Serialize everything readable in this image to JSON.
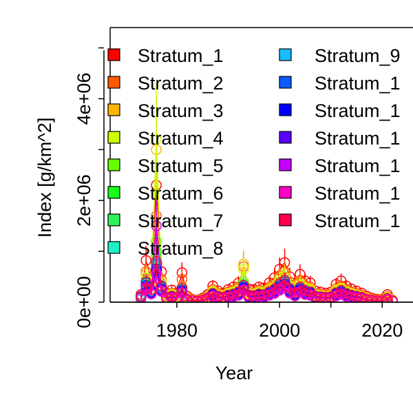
{
  "chart_data": {
    "type": "scatter",
    "title": "",
    "xlabel": "Year",
    "ylabel": "Index [g/km^2]",
    "xlim": [
      1967,
      2026
    ],
    "ylim": [
      0,
      5400000
    ],
    "x_ticks": [
      1980,
      2000,
      2020
    ],
    "x_tick_labels": [
      "1980",
      "2000",
      "2020"
    ],
    "y_ticks": [
      0,
      2000000,
      4000000
    ],
    "y_tick_labels": [
      "0e+00",
      "2e+06",
      "4e+06"
    ],
    "grid": false,
    "legend_position": "top-left, two columns, clipped at the right edge",
    "legend_entries": [
      {
        "label": "Stratum_1",
        "color": "#FF0000"
      },
      {
        "label": "Stratum_2",
        "color": "#FF5A00"
      },
      {
        "label": "Stratum_3",
        "color": "#FFB400"
      },
      {
        "label": "Stratum_4",
        "color": "#CCFF00"
      },
      {
        "label": "Stratum_5",
        "color": "#66FF00"
      },
      {
        "label": "Stratum_6",
        "color": "#1AFF1A"
      },
      {
        "label": "Stratum_7",
        "color": "#2EF25A"
      },
      {
        "label": "Stratum_8",
        "color": "#1FF0C8"
      },
      {
        "label": "Stratum_9",
        "color": "#19BDFF"
      },
      {
        "label": "Stratum_1",
        "color": "#0A5CFF"
      },
      {
        "label": "Stratum_1",
        "color": "#0000FF"
      },
      {
        "label": "Stratum_1",
        "color": "#5A00FF"
      },
      {
        "label": "Stratum_1",
        "color": "#C800FF"
      },
      {
        "label": "Stratum_1",
        "color": "#FF00C8"
      },
      {
        "label": "Stratum_1",
        "color": "#FF0050"
      }
    ],
    "series_colors": [
      "#FF0000",
      "#FF5A00",
      "#FFB400",
      "#CCFF00",
      "#66FF00",
      "#1AFF1A",
      "#2EF25A",
      "#1FF0C8",
      "#19BDFF",
      "#0A5CFF",
      "#0000FF",
      "#5A00FF",
      "#C800FF",
      "#FF00C8",
      "#FF0050"
    ],
    "years": [
      1973,
      1974,
      1975,
      1976,
      1977,
      1978,
      1979,
      1980,
      1981,
      1982,
      1983,
      1984,
      1985,
      1986,
      1987,
      1988,
      1989,
      1990,
      1991,
      1992,
      1993,
      1994,
      1995,
      1996,
      1997,
      1998,
      1999,
      2000,
      2001,
      2002,
      2003,
      2004,
      2005,
      2006,
      2007,
      2008,
      2009,
      2010,
      2011,
      2012,
      2013,
      2014,
      2015,
      2016,
      2017,
      2018,
      2019,
      2020,
      2021,
      2022
    ],
    "series": [
      {
        "values": [
          150000,
          820000,
          450000,
          2300000,
          600000,
          180000,
          240000,
          180000,
          580000,
          120000,
          60000,
          40000,
          80000,
          150000,
          320000,
          220000,
          180000,
          250000,
          300000,
          380000,
          300000,
          260000,
          250000,
          300000,
          280000,
          380000,
          480000,
          650000,
          780000,
          500000,
          350000,
          550000,
          420000,
          380000,
          220000,
          200000,
          180000,
          200000,
          350000,
          420000,
          320000,
          260000,
          220000,
          180000,
          120000,
          80000,
          60000,
          60000,
          150000,
          40000
        ]
      },
      {
        "values": [
          100000,
          600000,
          350000,
          1700000,
          450000,
          140000,
          180000,
          140000,
          450000,
          90000,
          50000,
          30000,
          60000,
          120000,
          250000,
          170000,
          150000,
          200000,
          230000,
          300000,
          700000,
          200000,
          190000,
          230000,
          220000,
          300000,
          380000,
          520000,
          600000,
          400000,
          280000,
          430000,
          330000,
          300000,
          170000,
          150000,
          140000,
          150000,
          270000,
          320000,
          250000,
          200000,
          170000,
          140000,
          90000,
          60000,
          45000,
          45000,
          110000,
          30000
        ]
      },
      {
        "values": [
          90000,
          550000,
          320000,
          3000000,
          420000,
          130000,
          160000,
          130000,
          300000,
          80000,
          45000,
          28000,
          55000,
          110000,
          220000,
          150000,
          130000,
          180000,
          210000,
          270000,
          750000,
          180000,
          170000,
          210000,
          200000,
          270000,
          340000,
          480000,
          560000,
          360000,
          250000,
          390000,
          300000,
          270000,
          150000,
          140000,
          120000,
          140000,
          240000,
          290000,
          220000,
          180000,
          150000,
          120000,
          80000,
          55000,
          40000,
          40000,
          100000,
          28000
        ]
      },
      {
        "values": [
          80000,
          480000,
          280000,
          3200000,
          380000,
          110000,
          140000,
          110000,
          260000,
          70000,
          40000,
          25000,
          50000,
          100000,
          200000,
          140000,
          120000,
          160000,
          190000,
          240000,
          650000,
          160000,
          150000,
          190000,
          180000,
          240000,
          300000,
          420000,
          500000,
          320000,
          220000,
          350000,
          270000,
          240000,
          140000,
          120000,
          110000,
          120000,
          220000,
          260000,
          200000,
          160000,
          140000,
          110000,
          70000,
          50000,
          35000,
          35000,
          90000,
          25000
        ]
      },
      {
        "values": [
          70000,
          420000,
          250000,
          1200000,
          330000,
          100000,
          120000,
          100000,
          230000,
          60000,
          35000,
          22000,
          45000,
          90000,
          180000,
          120000,
          100000,
          140000,
          170000,
          210000,
          400000,
          140000,
          130000,
          170000,
          160000,
          210000,
          260000,
          370000,
          440000,
          280000,
          190000,
          300000,
          240000,
          210000,
          120000,
          110000,
          100000,
          110000,
          190000,
          230000,
          180000,
          140000,
          120000,
          100000,
          60000,
          45000,
          30000,
          30000,
          80000,
          22000
        ]
      },
      {
        "values": [
          60000,
          380000,
          220000,
          1000000,
          300000,
          90000,
          110000,
          90000,
          210000,
          55000,
          32000,
          20000,
          40000,
          80000,
          160000,
          110000,
          90000,
          130000,
          150000,
          190000,
          350000,
          130000,
          120000,
          150000,
          140000,
          190000,
          240000,
          330000,
          400000,
          250000,
          170000,
          270000,
          210000,
          190000,
          110000,
          100000,
          90000,
          100000,
          170000,
          210000,
          160000,
          130000,
          110000,
          90000,
          55000,
          40000,
          28000,
          28000,
          70000,
          20000
        ]
      },
      {
        "values": [
          55000,
          350000,
          200000,
          900000,
          270000,
          80000,
          100000,
          80000,
          190000,
          50000,
          30000,
          18000,
          36000,
          72000,
          145000,
          100000,
          82000,
          118000,
          136000,
          172000,
          320000,
          118000,
          108000,
          136000,
          127000,
          172000,
          218000,
          300000,
          360000,
          227000,
          154000,
          245000,
          190000,
          172000,
          100000,
          90000,
          82000,
          90000,
          154000,
          190000,
          145000,
          118000,
          100000,
          82000,
          50000,
          36000,
          25000,
          25000,
          63000,
          18000
        ]
      },
      {
        "values": [
          50000,
          320000,
          180000,
          800000,
          250000,
          72000,
          90000,
          72000,
          170000,
          45000,
          27000,
          16000,
          32000,
          65000,
          130000,
          90000,
          74000,
          106000,
          122000,
          155000,
          290000,
          106000,
          97000,
          122000,
          114000,
          155000,
          196000,
          270000,
          330000,
          204000,
          139000,
          220000,
          171000,
          155000,
          90000,
          81000,
          74000,
          81000,
          139000,
          171000,
          130000,
          106000,
          90000,
          74000,
          45000,
          32000,
          23000,
          23000,
          57000,
          16000
        ]
      },
      {
        "values": [
          45000,
          300000,
          170000,
          700000,
          230000,
          65000,
          82000,
          65000,
          160000,
          41000,
          25000,
          15000,
          30000,
          60000,
          120000,
          82000,
          68000,
          98000,
          112000,
          143000,
          270000,
          98000,
          89000,
          112000,
          105000,
          143000,
          180000,
          250000,
          300000,
          188000,
          128000,
          203000,
          157000,
          143000,
          82000,
          75000,
          68000,
          75000,
          128000,
          157000,
          120000,
          98000,
          82000,
          68000,
          41000,
          30000,
          21000,
          21000,
          52000,
          15000
        ]
      },
      {
        "values": [
          120000,
          380000,
          220000,
          750000,
          300000,
          90000,
          110000,
          90000,
          250000,
          55000,
          32000,
          20000,
          40000,
          80000,
          160000,
          110000,
          90000,
          130000,
          150000,
          190000,
          300000,
          130000,
          120000,
          150000,
          140000,
          190000,
          240000,
          330000,
          400000,
          250000,
          170000,
          270000,
          210000,
          190000,
          110000,
          100000,
          90000,
          100000,
          170000,
          210000,
          160000,
          130000,
          110000,
          90000,
          55000,
          40000,
          28000,
          28000,
          70000,
          20000
        ]
      },
      {
        "values": [
          100000,
          330000,
          200000,
          650000,
          260000,
          80000,
          100000,
          80000,
          220000,
          50000,
          30000,
          18000,
          36000,
          72000,
          145000,
          100000,
          82000,
          118000,
          136000,
          172000,
          280000,
          118000,
          108000,
          136000,
          127000,
          172000,
          218000,
          300000,
          360000,
          227000,
          154000,
          245000,
          190000,
          172000,
          100000,
          90000,
          82000,
          90000,
          154000,
          190000,
          145000,
          118000,
          100000,
          82000,
          50000,
          36000,
          25000,
          25000,
          63000,
          18000
        ]
      },
      {
        "values": [
          90000,
          300000,
          180000,
          600000,
          240000,
          72000,
          90000,
          72000,
          200000,
          45000,
          27000,
          16000,
          32000,
          65000,
          130000,
          90000,
          74000,
          106000,
          122000,
          155000,
          260000,
          106000,
          97000,
          122000,
          114000,
          155000,
          196000,
          270000,
          330000,
          204000,
          139000,
          220000,
          171000,
          155000,
          90000,
          81000,
          74000,
          81000,
          139000,
          171000,
          130000,
          106000,
          90000,
          74000,
          45000,
          32000,
          23000,
          23000,
          57000,
          16000
        ]
      },
      {
        "values": [
          85000,
          280000,
          170000,
          1500000,
          220000,
          66000,
          84000,
          66000,
          190000,
          42000,
          25000,
          15000,
          30000,
          60000,
          120000,
          84000,
          68000,
          98000,
          113000,
          144000,
          240000,
          98000,
          90000,
          113000,
          106000,
          144000,
          182000,
          252000,
          310000,
          190000,
          130000,
          205000,
          160000,
          144000,
          84000,
          76000,
          68000,
          76000,
          130000,
          160000,
          120000,
          98000,
          84000,
          68000,
          42000,
          30000,
          21000,
          21000,
          53000,
          15000
        ]
      },
      {
        "values": [
          80000,
          260000,
          160000,
          550000,
          210000,
          62000,
          78000,
          62000,
          180000,
          40000,
          24000,
          14000,
          28000,
          56000,
          112000,
          78000,
          64000,
          92000,
          105000,
          134000,
          230000,
          92000,
          84000,
          105000,
          99000,
          134000,
          170000,
          235000,
          290000,
          177000,
          121000,
          192000,
          150000,
          134000,
          78000,
          71000,
          64000,
          71000,
          121000,
          150000,
          112000,
          92000,
          78000,
          64000,
          40000,
          28000,
          20000,
          20000,
          50000,
          14000
        ]
      },
      {
        "values": [
          110000,
          400000,
          250000,
          800000,
          320000,
          95000,
          120000,
          95000,
          280000,
          60000,
          35000,
          22000,
          44000,
          88000,
          175000,
          120000,
          98000,
          140000,
          160000,
          205000,
          330000,
          140000,
          130000,
          160000,
          150000,
          205000,
          260000,
          360000,
          430000,
          270000,
          185000,
          295000,
          230000,
          205000,
          120000,
          108000,
          98000,
          108000,
          185000,
          230000,
          175000,
          140000,
          120000,
          98000,
          60000,
          44000,
          30000,
          30000,
          75000,
          22000
        ]
      }
    ]
  }
}
